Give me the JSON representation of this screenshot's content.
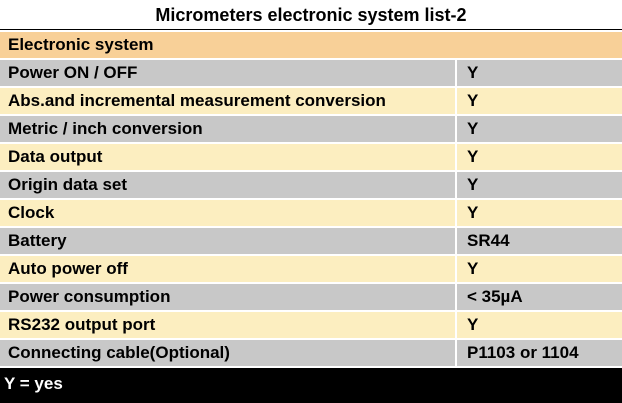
{
  "title": "Micrometers electronic system list-2",
  "header": "Electronic system",
  "rows": [
    {
      "label": "Power ON / OFF",
      "value": "Y"
    },
    {
      "label": "Abs.and incremental measurement conversion",
      "value": "Y"
    },
    {
      "label": "Metric / inch conversion",
      "value": "Y"
    },
    {
      "label": "Data output",
      "value": "Y"
    },
    {
      "label": "Origin data set",
      "value": "Y"
    },
    {
      "label": "Clock",
      "value": "Y"
    },
    {
      "label": "Battery",
      "value": "SR44"
    },
    {
      "label": "Auto power off",
      "value": "Y"
    },
    {
      "label": "Power consumption",
      "value": "< 35µA"
    },
    {
      "label": "RS232 output port",
      "value": "Y"
    },
    {
      "label": "Connecting cable(Optional)",
      "value": "P1103 or 1104"
    }
  ],
  "footer": "Y = yes",
  "colors": {
    "header": "#F8D098",
    "row_gray": "#C8C8C8",
    "row_cream": "#FCEEC0",
    "footer": "#000000"
  }
}
